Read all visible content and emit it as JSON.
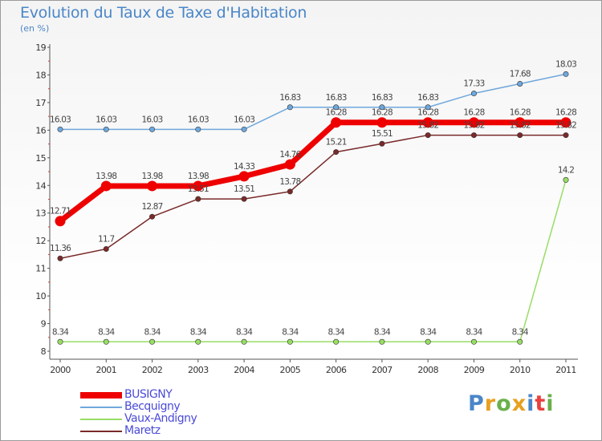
{
  "chart_data": {
    "type": "line",
    "title": "Evolution du Taux de Taxe d'Habitation",
    "subtitle": "(en %)",
    "x": [
      "2000",
      "2001",
      "2002",
      "2003",
      "2004",
      "2005",
      "2006",
      "2007",
      "2008",
      "2009",
      "2010",
      "2011"
    ],
    "ylim": [
      8,
      19
    ],
    "yticks": [
      8,
      9,
      10,
      11,
      12,
      13,
      14,
      15,
      16,
      17,
      18,
      19
    ],
    "grid": false,
    "legend_position": "bottom-left",
    "series": [
      {
        "name": "BUSIGNY",
        "color": "#ee0000",
        "values": [
          12.71,
          13.98,
          13.98,
          13.98,
          14.33,
          14.76,
          16.28,
          16.28,
          16.28,
          16.28,
          16.28,
          16.28
        ],
        "labels": [
          "12.71",
          "13.98",
          "13.98",
          "13.98",
          "14.33",
          "14.76",
          "16.28",
          "16.28",
          "16.28",
          "16.28",
          "16.28",
          "16.28"
        ]
      },
      {
        "name": "Becquigny",
        "color": "#6fa8dc",
        "values": [
          16.03,
          16.03,
          16.03,
          16.03,
          16.03,
          16.83,
          16.83,
          16.83,
          16.83,
          17.33,
          17.68,
          18.03
        ],
        "labels": [
          "16.03",
          "16.03",
          "16.03",
          "16.03",
          "16.03",
          "16.83",
          "16.83",
          "16.83",
          "16.83",
          "17.33",
          "17.68",
          "18.03"
        ]
      },
      {
        "name": "Vaux-Andigny",
        "color": "#99dd66",
        "values": [
          8.34,
          8.34,
          8.34,
          8.34,
          8.34,
          8.34,
          8.34,
          8.34,
          8.34,
          8.34,
          8.34,
          14.2
        ],
        "labels": [
          "8.34",
          "8.34",
          "8.34",
          "8.34",
          "8.34",
          "8.34",
          "8.34",
          "8.34",
          "8.34",
          "8.34",
          "8.34",
          "14.2"
        ]
      },
      {
        "name": "Maretz",
        "color": "#7a2a2a",
        "values": [
          11.36,
          11.7,
          12.87,
          13.51,
          13.51,
          13.78,
          15.21,
          15.51,
          15.82,
          15.82,
          15.82,
          15.82
        ],
        "labels": [
          "11.36",
          "11.7",
          "12.87",
          "13.51",
          "13.51",
          "13.78",
          "15.21",
          "15.51",
          "15.82",
          "15.82",
          "15.82",
          "15.82"
        ]
      }
    ]
  },
  "logo": {
    "text": "Proxiti",
    "colors": [
      "#4a86c8",
      "#e8a020",
      "#6ab04c",
      "#e8a020",
      "#4a86c8",
      "#e84040",
      "#6ab04c"
    ]
  }
}
